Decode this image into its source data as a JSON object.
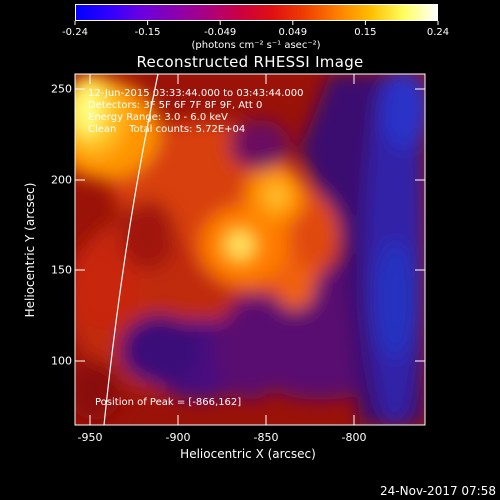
{
  "colorbar": {
    "tick_labels": [
      "-0.24",
      "-0.15",
      "-0.049",
      "0.049",
      "0.15",
      "0.24"
    ],
    "units": "(photons cm⁻² s⁻¹ asec⁻²)",
    "colors": [
      "#0000ff",
      "#3000ff",
      "#6a00e0",
      "#8a00b0",
      "#aa0080",
      "#cc0040",
      "#e01010",
      "#f04000",
      "#ff8000",
      "#ffc000",
      "#ffff60",
      "#ffffff"
    ]
  },
  "plot": {
    "title": "Reconstructed RHESSI Image",
    "info_lines": [
      "12-Jun-2015 03:33:44.000 to 03:43:44.000",
      "Detectors: 3F 5F 6F 7F 8F 9F, Att 0",
      "Energy Range: 3.0 - 6.0 keV",
      "Clean    Total counts: 5.72E+04"
    ],
    "peak_text": "Position of Peak = [-866,162]",
    "x_axis": {
      "label": "Heliocentric X (arcsec)",
      "ticks": [
        "-950",
        "-900",
        "-850",
        "-800"
      ]
    },
    "y_axis": {
      "label": "Heliocentric Y (arcsec)",
      "ticks": [
        "250",
        "200",
        "150",
        "100"
      ]
    },
    "axis_range": {
      "x": [
        -962,
        -828
      ],
      "y": [
        65,
        258
      ]
    }
  },
  "footer": {
    "datestamp": "24-Nov-2017 07:58"
  }
}
